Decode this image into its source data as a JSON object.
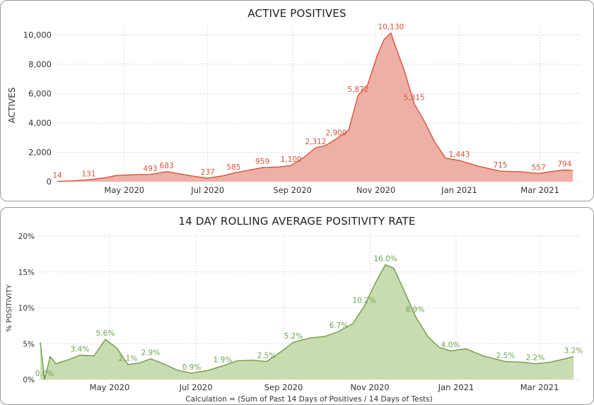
{
  "chart_data": [
    {
      "type": "area",
      "title": "ACTIVE POSITIVES",
      "ylabel": "ACTIVES",
      "xlabel": "",
      "ylim": [
        0,
        10500
      ],
      "y_ticks": [
        {
          "value": 0,
          "label": "0"
        },
        {
          "value": 2000,
          "label": "2,000"
        },
        {
          "value": 4000,
          "label": "4,000"
        },
        {
          "value": 6000,
          "label": "6,000"
        },
        {
          "value": 8000,
          "label": "8,000"
        },
        {
          "value": 10000,
          "label": "10,000"
        }
      ],
      "x_ticks": [
        {
          "date": "2020-05-01",
          "label": "May 2020"
        },
        {
          "date": "2020-07-01",
          "label": "Jul 2020"
        },
        {
          "date": "2020-09-01",
          "label": "Sep 2020"
        },
        {
          "date": "2020-11-01",
          "label": "Nov 2020"
        },
        {
          "date": "2021-01-01",
          "label": "Jan 2021"
        },
        {
          "date": "2021-03-01",
          "label": "Mar 2021"
        }
      ],
      "grid": true,
      "color_line": "#d9533b",
      "color_fill": "#eeb0a6",
      "points": [
        [
          "2020-03-13",
          14
        ],
        [
          "2020-03-25",
          60
        ],
        [
          "2020-04-05",
          131
        ],
        [
          "2020-04-18",
          280
        ],
        [
          "2020-04-25",
          420
        ],
        [
          "2020-05-08",
          470
        ],
        [
          "2020-05-20",
          493
        ],
        [
          "2020-06-01",
          683
        ],
        [
          "2020-06-10",
          540
        ],
        [
          "2020-06-20",
          380
        ],
        [
          "2020-07-01",
          237
        ],
        [
          "2020-07-12",
          400
        ],
        [
          "2020-07-20",
          585
        ],
        [
          "2020-08-01",
          800
        ],
        [
          "2020-08-10",
          959
        ],
        [
          "2020-08-22",
          1000
        ],
        [
          "2020-08-31",
          1100
        ],
        [
          "2020-09-10",
          1700
        ],
        [
          "2020-09-18",
          2312
        ],
        [
          "2020-09-25",
          2450
        ],
        [
          "2020-10-03",
          2909
        ],
        [
          "2020-10-12",
          3500
        ],
        [
          "2020-10-19",
          5872
        ],
        [
          "2020-10-26",
          6600
        ],
        [
          "2020-11-02",
          8600
        ],
        [
          "2020-11-07",
          9700
        ],
        [
          "2020-11-12",
          10130
        ],
        [
          "2020-11-15",
          9300
        ],
        [
          "2020-11-22",
          7500
        ],
        [
          "2020-11-29",
          5315
        ],
        [
          "2020-12-06",
          4200
        ],
        [
          "2020-12-14",
          2700
        ],
        [
          "2020-12-22",
          1600
        ],
        [
          "2021-01-01",
          1443
        ],
        [
          "2021-01-15",
          1050
        ],
        [
          "2021-01-31",
          715
        ],
        [
          "2021-02-15",
          680
        ],
        [
          "2021-02-28",
          557
        ],
        [
          "2021-03-10",
          700
        ],
        [
          "2021-03-19",
          794
        ],
        [
          "2021-03-25",
          760
        ]
      ],
      "annotations": [
        {
          "date": "2020-03-13",
          "value": 14,
          "label": "14"
        },
        {
          "date": "2020-04-05",
          "value": 131,
          "label": "131"
        },
        {
          "date": "2020-05-20",
          "value": 493,
          "label": "493"
        },
        {
          "date": "2020-06-01",
          "value": 683,
          "label": "683"
        },
        {
          "date": "2020-07-01",
          "value": 237,
          "label": "237"
        },
        {
          "date": "2020-07-20",
          "value": 585,
          "label": "585"
        },
        {
          "date": "2020-08-10",
          "value": 959,
          "label": "959"
        },
        {
          "date": "2020-08-31",
          "value": 1100,
          "label": "1,100"
        },
        {
          "date": "2020-09-18",
          "value": 2312,
          "label": "2,312"
        },
        {
          "date": "2020-10-03",
          "value": 2909,
          "label": "2,909"
        },
        {
          "date": "2020-10-19",
          "value": 5872,
          "label": "5,872"
        },
        {
          "date": "2020-11-12",
          "value": 10130,
          "label": "10,130"
        },
        {
          "date": "2020-11-29",
          "value": 5315,
          "label": "5,315"
        },
        {
          "date": "2021-01-01",
          "value": 1443,
          "label": "1,443"
        },
        {
          "date": "2021-01-31",
          "value": 715,
          "label": "715"
        },
        {
          "date": "2021-02-28",
          "value": 557,
          "label": "557"
        },
        {
          "date": "2021-03-19",
          "value": 794,
          "label": "794"
        }
      ]
    },
    {
      "type": "area",
      "title": "14 DAY ROLLING AVERAGE POSITIVITY RATE",
      "ylabel": "% POSITIVITY",
      "xlabel": "Calculation = (Sum of Past 14 Days of Positives / 14 Days of Tests)",
      "ylim": [
        0,
        20
      ],
      "y_ticks": [
        {
          "value": 0,
          "label": "0%"
        },
        {
          "value": 5,
          "label": "5%"
        },
        {
          "value": 10,
          "label": "10%"
        },
        {
          "value": 15,
          "label": "15%"
        },
        {
          "value": 20,
          "label": "20%"
        }
      ],
      "x_ticks": [
        {
          "date": "2020-05-01",
          "label": "May 2020"
        },
        {
          "date": "2020-07-01",
          "label": "Jul 2020"
        },
        {
          "date": "2020-09-01",
          "label": "Sep 2020"
        },
        {
          "date": "2020-11-01",
          "label": "Nov 2020"
        },
        {
          "date": "2021-01-01",
          "label": "Jan 2021"
        },
        {
          "date": "2021-03-01",
          "label": "Mar 2021"
        }
      ],
      "grid": true,
      "color_line": "#6f9a46",
      "color_fill": "#c9dcb1",
      "points": [
        [
          "2020-03-13",
          5.2
        ],
        [
          "2020-03-16",
          0.0
        ],
        [
          "2020-03-20",
          3.2
        ],
        [
          "2020-03-24",
          2.2
        ],
        [
          "2020-04-01",
          2.7
        ],
        [
          "2020-04-10",
          3.4
        ],
        [
          "2020-04-20",
          3.3
        ],
        [
          "2020-04-28",
          5.6
        ],
        [
          "2020-05-06",
          4.4
        ],
        [
          "2020-05-14",
          2.1
        ],
        [
          "2020-05-22",
          2.3
        ],
        [
          "2020-05-30",
          2.9
        ],
        [
          "2020-06-08",
          2.2
        ],
        [
          "2020-06-18",
          1.3
        ],
        [
          "2020-06-28",
          0.9
        ],
        [
          "2020-07-10",
          1.3
        ],
        [
          "2020-07-20",
          1.9
        ],
        [
          "2020-07-30",
          2.6
        ],
        [
          "2020-08-10",
          2.7
        ],
        [
          "2020-08-20",
          2.5
        ],
        [
          "2020-08-31",
          4.0
        ],
        [
          "2020-09-08",
          5.2
        ],
        [
          "2020-09-20",
          5.8
        ],
        [
          "2020-09-30",
          6.0
        ],
        [
          "2020-10-10",
          6.7
        ],
        [
          "2020-10-20",
          7.8
        ],
        [
          "2020-10-28",
          10.2
        ],
        [
          "2020-11-05",
          13.5
        ],
        [
          "2020-11-12",
          16.0
        ],
        [
          "2020-11-18",
          15.5
        ],
        [
          "2020-11-25",
          12.5
        ],
        [
          "2020-12-03",
          8.9
        ],
        [
          "2020-12-12",
          6.0
        ],
        [
          "2020-12-20",
          4.5
        ],
        [
          "2020-12-28",
          4.0
        ],
        [
          "2021-01-08",
          4.3
        ],
        [
          "2021-01-20",
          3.3
        ],
        [
          "2021-02-05",
          2.5
        ],
        [
          "2021-02-18",
          2.4
        ],
        [
          "2021-02-26",
          2.2
        ],
        [
          "2021-03-08",
          2.4
        ],
        [
          "2021-03-17",
          2.8
        ],
        [
          "2021-03-25",
          3.2
        ]
      ],
      "annotations": [
        {
          "date": "2020-03-16",
          "value": 0.0,
          "label": "0.0%"
        },
        {
          "date": "2020-04-10",
          "value": 3.4,
          "label": "3.4%"
        },
        {
          "date": "2020-04-28",
          "value": 5.6,
          "label": "5.6%"
        },
        {
          "date": "2020-05-14",
          "value": 2.1,
          "label": "2.1%"
        },
        {
          "date": "2020-05-30",
          "value": 2.9,
          "label": "2.9%"
        },
        {
          "date": "2020-06-28",
          "value": 0.9,
          "label": "0.9%"
        },
        {
          "date": "2020-07-20",
          "value": 1.9,
          "label": "1.9%"
        },
        {
          "date": "2020-08-20",
          "value": 2.5,
          "label": "2.5%"
        },
        {
          "date": "2020-09-08",
          "value": 5.2,
          "label": "5.2%"
        },
        {
          "date": "2020-10-10",
          "value": 6.7,
          "label": "6.7%"
        },
        {
          "date": "2020-10-28",
          "value": 10.2,
          "label": "10.2%"
        },
        {
          "date": "2020-11-12",
          "value": 16.0,
          "label": "16.0%"
        },
        {
          "date": "2020-12-03",
          "value": 8.9,
          "label": "8.9%"
        },
        {
          "date": "2020-12-28",
          "value": 4.0,
          "label": "4.0%"
        },
        {
          "date": "2021-02-05",
          "value": 2.5,
          "label": "2.5%"
        },
        {
          "date": "2021-02-26",
          "value": 2.2,
          "label": "2.2%"
        },
        {
          "date": "2021-03-25",
          "value": 3.2,
          "label": "3.2%"
        }
      ]
    }
  ]
}
